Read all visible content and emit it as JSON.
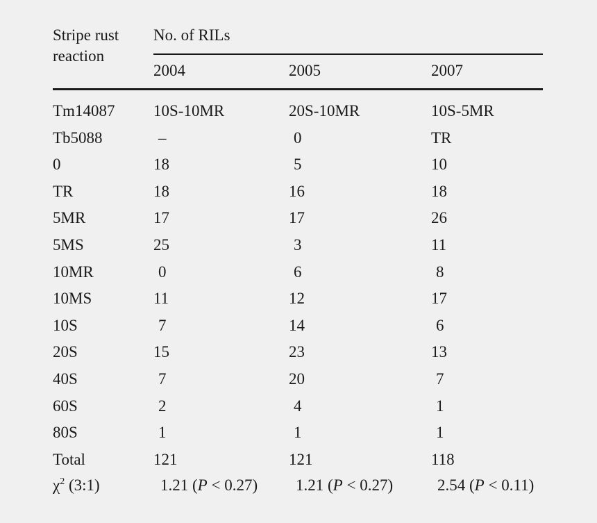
{
  "header": {
    "col1_line1": "Stripe rust",
    "col1_line2": "reaction",
    "group_label": "No. of RILs",
    "years": [
      "2004",
      "2005",
      "2007"
    ]
  },
  "rows": [
    {
      "label": "Tm14087",
      "values": [
        "10S-10MR",
        "20S-10MR",
        "10S-5MR"
      ]
    },
    {
      "label": "Tb5088",
      "values": [
        "–",
        "0",
        "TR"
      ]
    },
    {
      "label": "0",
      "values": [
        "18",
        "5",
        "10"
      ]
    },
    {
      "label": "TR",
      "values": [
        "18",
        "16",
        "18"
      ]
    },
    {
      "label": "5MR",
      "values": [
        "17",
        "17",
        "26"
      ]
    },
    {
      "label": "5MS",
      "values": [
        "25",
        "3",
        "11"
      ]
    },
    {
      "label": "10MR",
      "values": [
        "0",
        "6",
        "8"
      ]
    },
    {
      "label": "10MS",
      "values": [
        "11",
        "12",
        "17"
      ]
    },
    {
      "label": "10S",
      "values": [
        "7",
        "14",
        "6"
      ]
    },
    {
      "label": "20S",
      "values": [
        "15",
        "23",
        "13"
      ]
    },
    {
      "label": "40S",
      "values": [
        "7",
        "20",
        "7"
      ]
    },
    {
      "label": "60S",
      "values": [
        "2",
        "4",
        "1"
      ]
    },
    {
      "label": "80S",
      "values": [
        "1",
        "1",
        "1"
      ]
    },
    {
      "label": "Total",
      "values": [
        "121",
        "121",
        "118"
      ]
    }
  ],
  "chi_row": {
    "label_symbol": "χ",
    "label_sup": "2",
    "label_rest": " (3:1)",
    "cells": [
      {
        "value": "1.21 (",
        "p": "P",
        "rest": " < 0.27)"
      },
      {
        "value": "1.21 (",
        "p": "P",
        "rest": " < 0.27)"
      },
      {
        "value": "2.54 (",
        "p": "P",
        "rest": " < 0.11)"
      }
    ]
  }
}
